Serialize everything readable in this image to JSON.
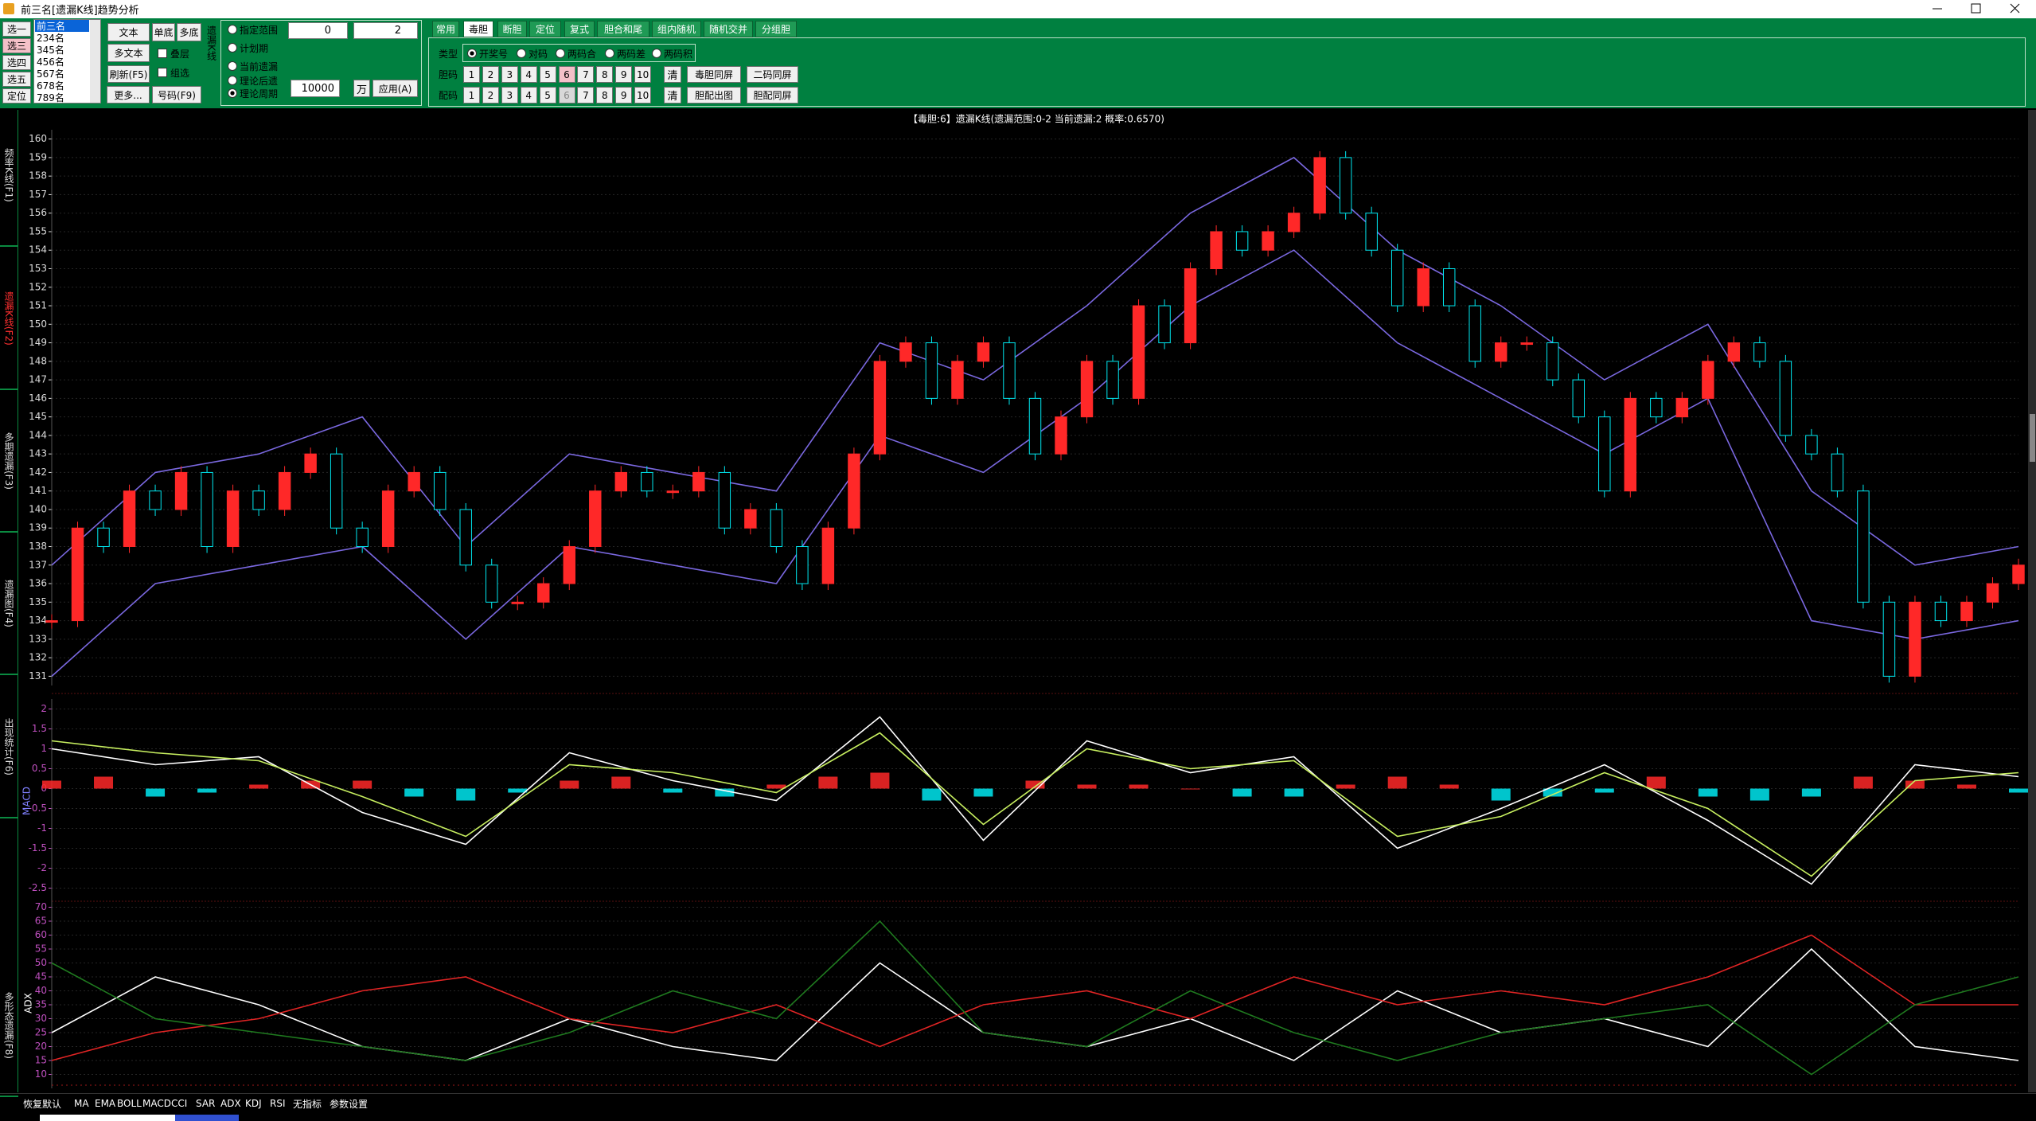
{
  "window": {
    "title": "前三名[遗漏K线]趋势分析"
  },
  "toolbar": {
    "select_buttons": [
      "选一",
      "选三",
      "选四",
      "选五",
      "定位"
    ],
    "rank_list": [
      "前三名",
      "234名",
      "345名",
      "456名",
      "567名",
      "678名",
      "789名"
    ],
    "buttons": [
      "文本",
      "单底",
      "多底",
      "多文本",
      "刷新(F5)",
      "更多...",
      "号码(F9)"
    ],
    "checkboxes": [
      "叠层",
      "组选"
    ],
    "group_label": "遗漏K线",
    "range_options": [
      "指定范围",
      "计划期"
    ],
    "range_from": 0,
    "range_to": 2,
    "mode_options": [
      "当前遗漏",
      "理论后遗",
      "理论周期"
    ],
    "amount": 10000,
    "amount_unit": "万",
    "apply": "应用(A)",
    "tabs": [
      "常用",
      "毒胆",
      "断胆",
      "定位",
      "复式",
      "胆合和尾",
      "组内随机",
      "随机交并",
      "分组胆"
    ],
    "type_label": "类型",
    "type_options": [
      "开奖号",
      "对码",
      "两码合",
      "两码差",
      "两码积"
    ],
    "dan_label": "胆码",
    "pei_label": "配码",
    "numbers": [
      1,
      2,
      3,
      4,
      5,
      6,
      7,
      8,
      9,
      10
    ],
    "clear": "清",
    "dan_buttons": [
      "毒胆同屏",
      "二码同屏"
    ],
    "pei_buttons": [
      "胆配出图",
      "胆配同屏"
    ]
  },
  "side_tabs": [
    "频率K线(F1)",
    "遗漏K线(F2)",
    "多期遗漏(F3)",
    "遗漏图(F4)",
    "出现统计(F6)",
    "多形态遗漏(F8)"
  ],
  "chart_data": {
    "type": "candlestick",
    "title": "【毒胆:6】遗漏K线(遗漏范围:0-2 当前遗漏:2 概率:0.6570)",
    "close": [
      134,
      139,
      138,
      141,
      140,
      142,
      138,
      141,
      140,
      142,
      143,
      139,
      138,
      141,
      142,
      140,
      137,
      135,
      135,
      136,
      138,
      141,
      142,
      141,
      141,
      142,
      139,
      140,
      138,
      136,
      139,
      143,
      148,
      149,
      146,
      148,
      149,
      146,
      143,
      145,
      148,
      146,
      151,
      149,
      153,
      155,
      154,
      155,
      156,
      159,
      156,
      154,
      151,
      153,
      151,
      148,
      149,
      149,
      147,
      145,
      141,
      146,
      145,
      146,
      148,
      149,
      148,
      144,
      143,
      141,
      135,
      131,
      135,
      134,
      135,
      136,
      137
    ],
    "up_color": "#ff2828",
    "down_color": "#00e8f0",
    "ylim": [
      130.5,
      160.5
    ],
    "yticks": [
      131,
      132,
      133,
      134,
      135,
      136,
      137,
      138,
      139,
      140,
      141,
      142,
      143,
      144,
      145,
      146,
      147,
      148,
      149,
      150,
      151,
      152,
      153,
      154,
      155,
      156,
      157,
      158,
      159,
      160
    ],
    "bands": {
      "color": "#7a68e0",
      "upper": [
        137,
        142,
        143,
        145,
        138,
        143,
        142,
        141,
        149,
        147,
        151,
        156,
        159,
        154,
        151,
        147,
        150,
        141,
        137,
        138
      ],
      "lower": [
        131,
        136,
        137,
        138,
        133,
        138,
        137,
        136,
        144,
        142,
        146,
        151,
        154,
        149,
        146,
        143,
        146,
        134,
        133,
        134
      ]
    },
    "macd": {
      "label": "MACD",
      "ylim": [
        -2.75,
        2.25
      ],
      "yticks": [
        2,
        1.5,
        1,
        0.5,
        0,
        -0.5,
        -1,
        -1.5,
        -2,
        -2.5
      ],
      "dif": [
        1.0,
        0.6,
        0.8,
        -0.6,
        -1.4,
        0.9,
        0.2,
        -0.3,
        1.8,
        -1.3,
        1.2,
        0.4,
        0.8,
        -1.5,
        -0.5,
        0.6,
        -0.8,
        -2.4,
        0.6,
        0.3
      ],
      "dea": [
        1.2,
        0.9,
        0.7,
        -0.2,
        -1.2,
        0.6,
        0.4,
        -0.1,
        1.4,
        -0.9,
        1.0,
        0.5,
        0.7,
        -1.2,
        -0.7,
        0.4,
        -0.5,
        -2.2,
        0.2,
        0.4
      ],
      "hist": [
        0.2,
        0.3,
        -0.2,
        -0.1,
        0.1,
        0.2,
        0.2,
        -0.2,
        -0.3,
        -0.1,
        0.2,
        0.3,
        -0.1,
        -0.2,
        0.1,
        0.3,
        0.4,
        -0.3,
        -0.2,
        0.2,
        0.1,
        0.1,
        0.0,
        -0.2,
        -0.2,
        0.1,
        0.3,
        0.1,
        -0.3,
        -0.2,
        -0.1,
        0.3,
        -0.2,
        -0.3,
        -0.2,
        0.3,
        0.2,
        0.1,
        -0.1
      ],
      "dif_color": "#ffffff",
      "dea_color": "#c8f060"
    },
    "adx": {
      "label": "ADX",
      "ylim": [
        5,
        75
      ],
      "yticks": [
        70,
        65,
        60,
        55,
        50,
        45,
        40,
        35,
        30,
        25,
        20,
        15,
        10
      ],
      "series": [
        {
          "color": "#ffffff",
          "values": [
            25,
            45,
            35,
            20,
            15,
            30,
            20,
            15,
            50,
            25,
            20,
            30,
            15,
            40,
            25,
            30,
            20,
            55,
            20,
            15
          ]
        },
        {
          "color": "#e02424",
          "values": [
            15,
            25,
            30,
            40,
            45,
            30,
            25,
            35,
            20,
            35,
            40,
            30,
            45,
            35,
            40,
            35,
            45,
            60,
            35,
            35
          ]
        },
        {
          "color": "#1f7a1f",
          "values": [
            50,
            30,
            25,
            20,
            15,
            25,
            40,
            30,
            65,
            25,
            20,
            40,
            25,
            15,
            25,
            30,
            35,
            10,
            35,
            45
          ]
        }
      ]
    }
  },
  "indicator_bar": [
    "恢复默认",
    "MA",
    "EMA",
    "BOLL",
    "MACD",
    "CCI",
    "SAR",
    "ADX",
    "KDJ",
    "RSI",
    "无指标",
    "参数设置"
  ]
}
